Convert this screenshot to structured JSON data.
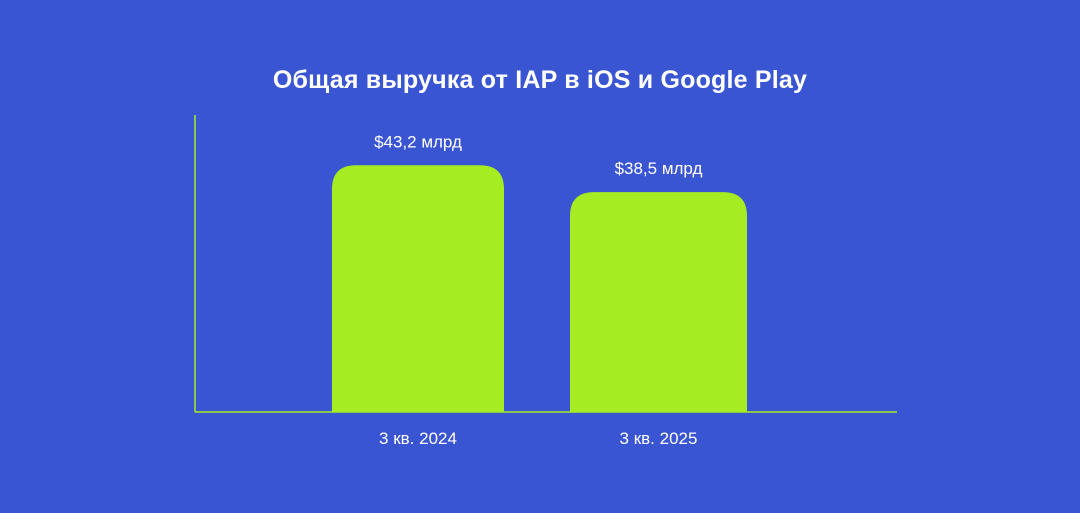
{
  "colors": {
    "background": "#3a55d1",
    "bar": "#a6ec23",
    "axis": "#a6ec23",
    "text": "#ffffff"
  },
  "chart_data": {
    "type": "bar",
    "title": "Общая выручка от IAP в iOS и Google Play",
    "xlabel": "",
    "ylabel": "",
    "categories": [
      "3 кв. 2024",
      "3 кв. 2025"
    ],
    "values": [
      43.2,
      38.5
    ],
    "value_labels": [
      "$43,2 млрд",
      "$38,5 млрд"
    ],
    "ylim": [
      0,
      52
    ],
    "grid": false,
    "legend": "none"
  }
}
